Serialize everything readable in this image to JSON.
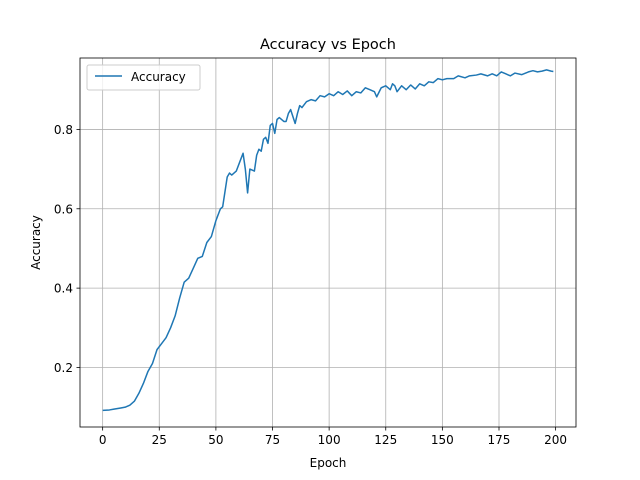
{
  "chart_data": {
    "type": "line",
    "title": "Accuracy vs Epoch",
    "xlabel": "Epoch",
    "ylabel": "Accuracy",
    "xlim": [
      -10,
      209
    ],
    "ylim": [
      0.05,
      0.98
    ],
    "xticks": [
      0,
      25,
      50,
      75,
      100,
      125,
      150,
      175,
      200
    ],
    "yticks": [
      0.2,
      0.4,
      0.6,
      0.8
    ],
    "ytick_labels": [
      "0.2",
      "0.4",
      "0.6",
      "0.8"
    ],
    "grid": true,
    "legend": "top-left",
    "series": [
      {
        "name": "Accuracy",
        "color": "#1f77b4",
        "points": [
          [
            0,
            0.092
          ],
          [
            3,
            0.093
          ],
          [
            5,
            0.095
          ],
          [
            8,
            0.098
          ],
          [
            10,
            0.1
          ],
          [
            12,
            0.105
          ],
          [
            14,
            0.115
          ],
          [
            16,
            0.135
          ],
          [
            18,
            0.16
          ],
          [
            20,
            0.19
          ],
          [
            22,
            0.21
          ],
          [
            24,
            0.245
          ],
          [
            26,
            0.26
          ],
          [
            28,
            0.275
          ],
          [
            30,
            0.3
          ],
          [
            32,
            0.33
          ],
          [
            34,
            0.375
          ],
          [
            36,
            0.415
          ],
          [
            38,
            0.425
          ],
          [
            40,
            0.45
          ],
          [
            42,
            0.475
          ],
          [
            44,
            0.48
          ],
          [
            46,
            0.515
          ],
          [
            48,
            0.53
          ],
          [
            50,
            0.57
          ],
          [
            52,
            0.6
          ],
          [
            53,
            0.605
          ],
          [
            55,
            0.68
          ],
          [
            56,
            0.69
          ],
          [
            57,
            0.685
          ],
          [
            59,
            0.695
          ],
          [
            61,
            0.725
          ],
          [
            62,
            0.74
          ],
          [
            63,
            0.7
          ],
          [
            64,
            0.64
          ],
          [
            65,
            0.7
          ],
          [
            67,
            0.695
          ],
          [
            68,
            0.735
          ],
          [
            69,
            0.75
          ],
          [
            70,
            0.745
          ],
          [
            71,
            0.775
          ],
          [
            72,
            0.78
          ],
          [
            73,
            0.765
          ],
          [
            74,
            0.81
          ],
          [
            75,
            0.815
          ],
          [
            76,
            0.79
          ],
          [
            77,
            0.825
          ],
          [
            78,
            0.83
          ],
          [
            80,
            0.82
          ],
          [
            81,
            0.82
          ],
          [
            82,
            0.84
          ],
          [
            83,
            0.85
          ],
          [
            85,
            0.815
          ],
          [
            86,
            0.84
          ],
          [
            87,
            0.86
          ],
          [
            88,
            0.855
          ],
          [
            90,
            0.87
          ],
          [
            92,
            0.875
          ],
          [
            94,
            0.872
          ],
          [
            96,
            0.885
          ],
          [
            98,
            0.882
          ],
          [
            100,
            0.89
          ],
          [
            102,
            0.885
          ],
          [
            104,
            0.895
          ],
          [
            106,
            0.888
          ],
          [
            108,
            0.897
          ],
          [
            110,
            0.885
          ],
          [
            112,
            0.895
          ],
          [
            114,
            0.892
          ],
          [
            116,
            0.905
          ],
          [
            118,
            0.9
          ],
          [
            120,
            0.895
          ],
          [
            121,
            0.882
          ],
          [
            123,
            0.905
          ],
          [
            125,
            0.91
          ],
          [
            127,
            0.9
          ],
          [
            128,
            0.915
          ],
          [
            129,
            0.91
          ],
          [
            130,
            0.895
          ],
          [
            132,
            0.91
          ],
          [
            134,
            0.9
          ],
          [
            136,
            0.912
          ],
          [
            138,
            0.902
          ],
          [
            140,
            0.915
          ],
          [
            142,
            0.91
          ],
          [
            144,
            0.92
          ],
          [
            146,
            0.918
          ],
          [
            148,
            0.928
          ],
          [
            150,
            0.925
          ],
          [
            152,
            0.928
          ],
          [
            155,
            0.928
          ],
          [
            157,
            0.935
          ],
          [
            160,
            0.93
          ],
          [
            162,
            0.935
          ],
          [
            165,
            0.937
          ],
          [
            167,
            0.94
          ],
          [
            170,
            0.935
          ],
          [
            172,
            0.94
          ],
          [
            174,
            0.935
          ],
          [
            176,
            0.945
          ],
          [
            178,
            0.94
          ],
          [
            180,
            0.935
          ],
          [
            182,
            0.942
          ],
          [
            185,
            0.938
          ],
          [
            188,
            0.945
          ],
          [
            190,
            0.948
          ],
          [
            192,
            0.945
          ],
          [
            194,
            0.947
          ],
          [
            196,
            0.95
          ],
          [
            198,
            0.947
          ],
          [
            199,
            0.946
          ]
        ]
      }
    ]
  }
}
